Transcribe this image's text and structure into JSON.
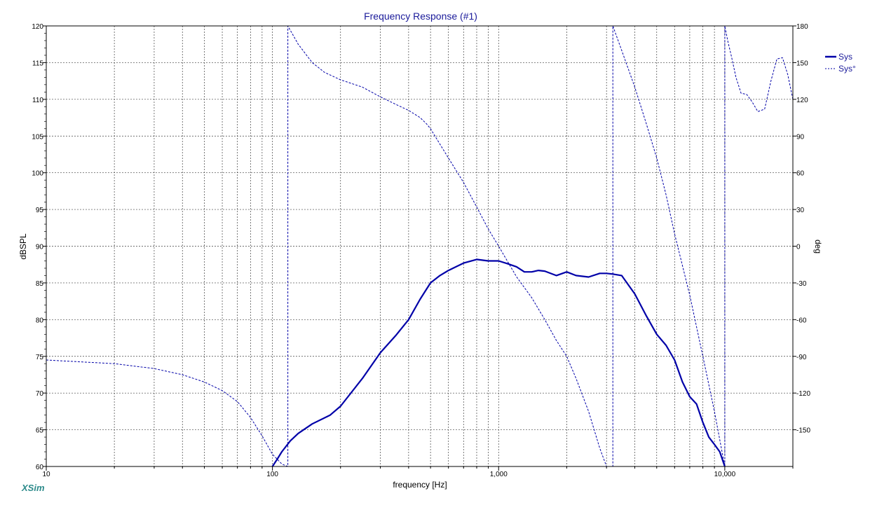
{
  "chart_data": {
    "type": "line",
    "title": "Frequency Response (#1)",
    "xlabel": "frequency [Hz]",
    "ylabel_left": "dBSPL",
    "ylabel_right": "deg",
    "x_scale": "log",
    "xlim": [
      10,
      20000
    ],
    "ylim_left": [
      60,
      120
    ],
    "ylim_right": [
      -180,
      180
    ],
    "grid": true,
    "legend_position": "top-right",
    "x_tick_labels": [
      "10",
      "100",
      "1,000",
      "10,000"
    ],
    "x_major_ticks": [
      10,
      100,
      1000,
      10000
    ],
    "y_left_ticks": [
      60,
      65,
      70,
      75,
      80,
      85,
      90,
      95,
      100,
      105,
      110,
      115,
      120
    ],
    "y_right_ticks": [
      180,
      150,
      120,
      90,
      60,
      30,
      0,
      -30,
      -60,
      -90,
      -120,
      -150
    ],
    "series": [
      {
        "name": "Sys",
        "axis": "left",
        "style": "solid",
        "color": "#0000a8",
        "x": [
          100,
          105,
          110,
          120,
          130,
          150,
          180,
          200,
          250,
          300,
          350,
          400,
          450,
          500,
          550,
          600,
          700,
          800,
          900,
          1000,
          1100,
          1200,
          1300,
          1400,
          1500,
          1600,
          1800,
          2000,
          2200,
          2500,
          2800,
          3000,
          3200,
          3500,
          4000,
          4500,
          5000,
          5500,
          6000,
          6500,
          7000,
          7500,
          8000,
          8500,
          9000,
          9500,
          10000
        ],
        "values": [
          60,
          61,
          62,
          63.5,
          64.5,
          65.8,
          67,
          68.2,
          72,
          75.5,
          77.8,
          80,
          82.8,
          85,
          86,
          86.7,
          87.7,
          88.2,
          88,
          88,
          87.6,
          87.2,
          86.5,
          86.5,
          86.7,
          86.6,
          86,
          86.5,
          86,
          85.8,
          86.3,
          86.3,
          86.2,
          86,
          83.5,
          80.5,
          78,
          76.5,
          74.5,
          71.5,
          69.5,
          68.5,
          66,
          64,
          63,
          62,
          60
        ]
      },
      {
        "name": "Sys°",
        "axis": "right",
        "style": "dashed",
        "color": "#0000a8",
        "x": [
          10,
          20,
          30,
          40,
          50,
          60,
          70,
          80,
          90,
          100,
          110,
          117,
          117,
          130,
          150,
          170,
          200,
          250,
          300,
          350,
          400,
          450,
          480,
          500,
          600,
          700,
          800,
          900,
          1000,
          1200,
          1400,
          1600,
          1800,
          2000,
          2200,
          2500,
          2800,
          3000,
          3200,
          3200,
          3500,
          4000,
          4500,
          5000,
          5500,
          6000,
          7000,
          8000,
          9000,
          10000,
          10000,
          10300,
          10700,
          11200,
          11800,
          12500,
          13200,
          14000,
          15000,
          16000,
          17000,
          18000,
          19000,
          20000
        ],
        "values": [
          -93,
          -96,
          -100,
          -105,
          -111,
          -118,
          -127,
          -140,
          -155,
          -170,
          -178,
          -180,
          180,
          165,
          150,
          142,
          136,
          130,
          122,
          116,
          111,
          105,
          100,
          96,
          72,
          52,
          32,
          14,
          0,
          -25,
          -42,
          -60,
          -77,
          -90,
          -108,
          -135,
          -165,
          -180,
          -180,
          180,
          160,
          130,
          100,
          72,
          42,
          10,
          -40,
          -90,
          -135,
          -180,
          180,
          168,
          155,
          138,
          125,
          124,
          118,
          110,
          112,
          135,
          153,
          154,
          140,
          120
        ]
      }
    ]
  },
  "brand_label": "XSim"
}
